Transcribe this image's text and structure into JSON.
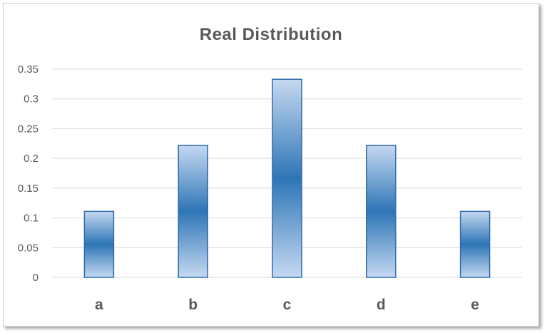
{
  "chart_data": {
    "type": "bar",
    "title": "Real Distribution",
    "categories": [
      "a",
      "b",
      "c",
      "d",
      "e"
    ],
    "values": [
      0.111,
      0.222,
      0.333,
      0.222,
      0.111
    ],
    "ylim": [
      0,
      0.35
    ],
    "yticks": [
      "0",
      "0.05",
      "0.1",
      "0.15",
      "0.2",
      "0.25",
      "0.3",
      "0.35"
    ],
    "ytick_values": [
      0,
      0.05,
      0.1,
      0.15,
      0.2,
      0.25,
      0.3,
      0.35
    ],
    "grid": true,
    "bar_color_light": "#c5d9f1",
    "bar_color_dark": "#2e75b6",
    "bar_border": "#2e6aad",
    "grid_color": "#d9d9d9"
  }
}
